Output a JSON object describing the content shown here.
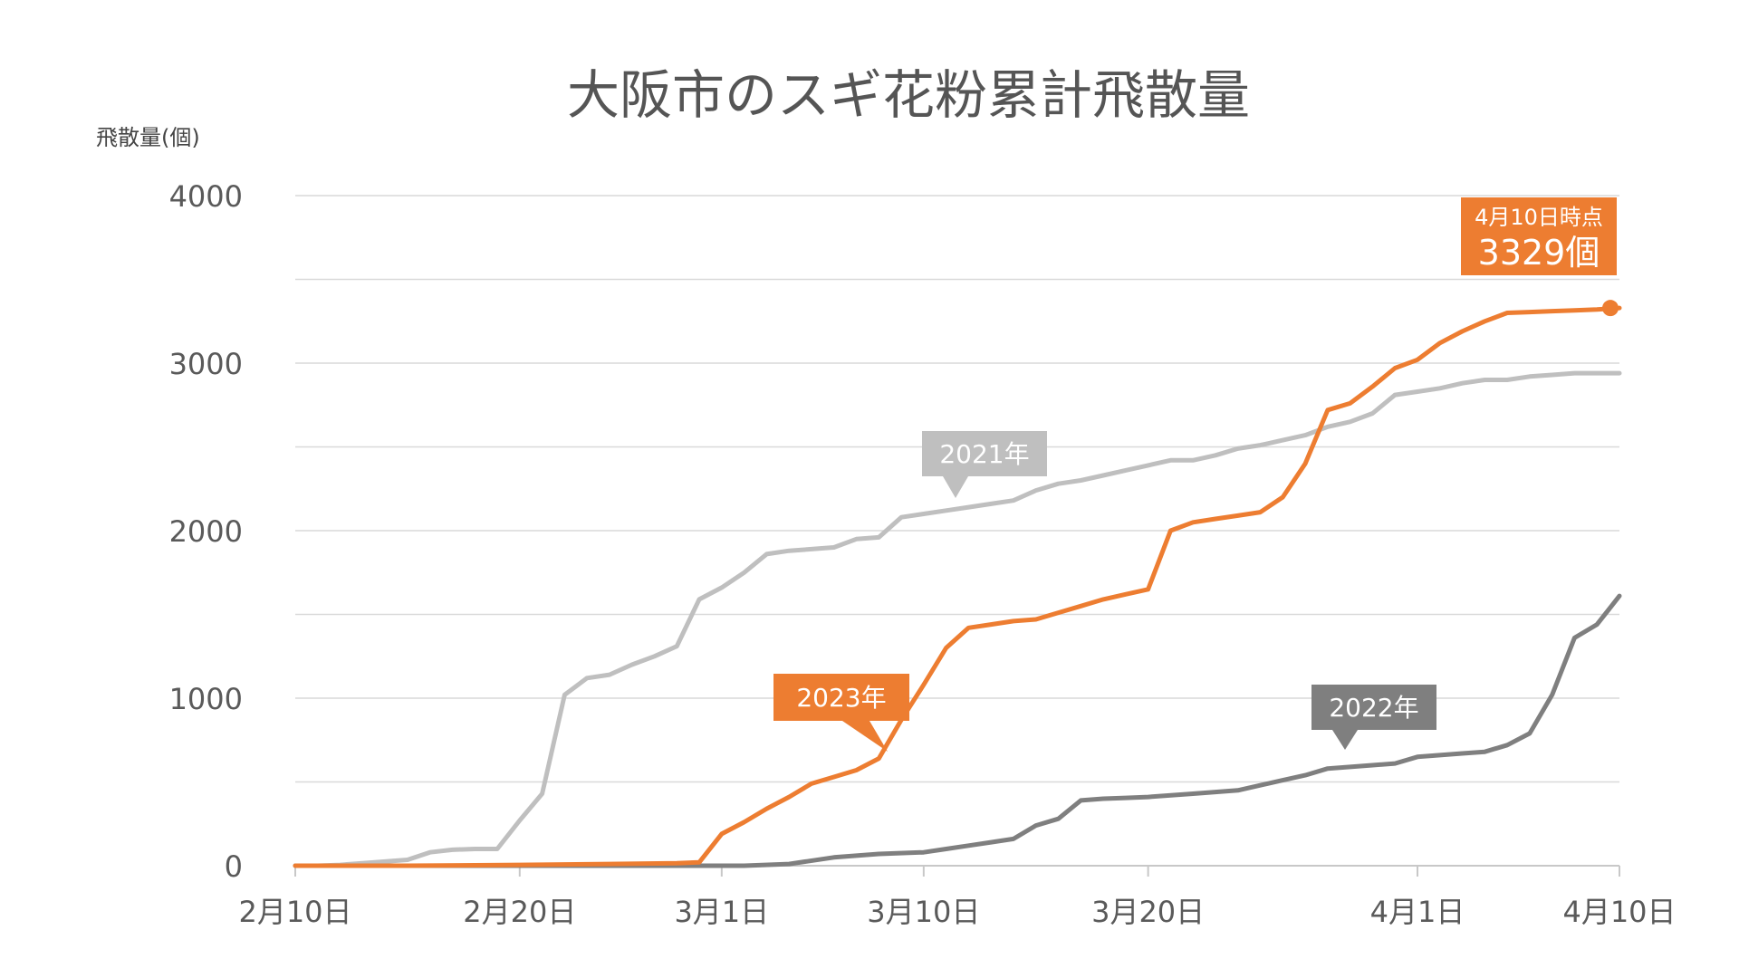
{
  "chart_data": {
    "type": "line",
    "title": "大阪市のスギ花粉累計飛散量",
    "ylabel": "飛散量(個)",
    "xlabel": "",
    "ylim": [
      0,
      4000
    ],
    "yticks": [
      0,
      1000,
      2000,
      3000,
      4000
    ],
    "y_gridlines": [
      0,
      500,
      1000,
      1500,
      2000,
      2500,
      3000,
      3500,
      4000
    ],
    "xlim": [
      "2月10日",
      "4月10日"
    ],
    "x_ticks": [
      {
        "day": 0,
        "label": "2月10日"
      },
      {
        "day": 10,
        "label": "2月20日"
      },
      {
        "day": 19,
        "label": "3月1日"
      },
      {
        "day": 28,
        "label": "3月10日"
      },
      {
        "day": 38,
        "label": "3月20日"
      },
      {
        "day": 50,
        "label": "4月1日"
      },
      {
        "day": 59,
        "label": "4月10日"
      }
    ],
    "grid": true,
    "legend": "none",
    "series": [
      {
        "name": "2021年",
        "color": "#bfbfbf",
        "x": [
          0,
          1,
          2,
          3,
          4,
          5,
          6,
          7,
          8,
          9,
          10,
          11,
          12,
          13,
          14,
          15,
          16,
          17,
          18,
          19,
          20,
          21,
          22,
          23,
          24,
          25,
          26,
          27,
          28,
          29,
          30,
          31,
          32,
          33,
          34,
          35,
          36,
          37,
          38,
          39,
          40,
          41,
          42,
          43,
          44,
          45,
          46,
          47,
          48,
          49,
          50,
          51,
          52,
          53,
          54,
          55,
          56,
          57,
          58,
          59
        ],
        "y": [
          0,
          0,
          5,
          15,
          25,
          35,
          80,
          95,
          100,
          100,
          270,
          430,
          1020,
          1120,
          1140,
          1200,
          1250,
          1310,
          1590,
          1660,
          1750,
          1860,
          1880,
          1890,
          1900,
          1950,
          1960,
          2080,
          2100,
          2120,
          2140,
          2160,
          2180,
          2240,
          2280,
          2300,
          2330,
          2360,
          2390,
          2420,
          2420,
          2450,
          2490,
          2510,
          2540,
          2570,
          2620,
          2650,
          2700,
          2810,
          2830,
          2850,
          2880,
          2900,
          2900,
          2920,
          2930,
          2940,
          2940,
          2940
        ]
      },
      {
        "name": "2022年",
        "color": "#7f7f7f",
        "x": [
          0,
          5,
          10,
          15,
          19,
          20,
          22,
          24,
          26,
          28,
          29,
          30,
          31,
          32,
          33,
          34,
          35,
          36,
          37,
          38,
          40,
          42,
          44,
          45,
          46,
          47,
          48,
          49,
          50,
          51,
          52,
          53,
          54,
          55,
          56,
          57,
          58,
          59
        ],
        "y": [
          0,
          0,
          0,
          0,
          0,
          0,
          10,
          50,
          70,
          80,
          100,
          120,
          140,
          160,
          240,
          280,
          390,
          400,
          405,
          410,
          430,
          450,
          510,
          540,
          580,
          590,
          600,
          610,
          650,
          660,
          670,
          680,
          720,
          790,
          1020,
          1360,
          1440,
          1610
        ]
      },
      {
        "name": "2023年",
        "color": "#ed7d31",
        "x": [
          0,
          5,
          10,
          14,
          17,
          18,
          19,
          20,
          21,
          22,
          23,
          24,
          25,
          26,
          27,
          28,
          29,
          30,
          31,
          32,
          33,
          34,
          35,
          36,
          37,
          38,
          39,
          40,
          41,
          42,
          43,
          44,
          45,
          46,
          47,
          48,
          49,
          50,
          51,
          52,
          53,
          54,
          55,
          56,
          57,
          58,
          59
        ],
        "y": [
          0,
          0,
          5,
          10,
          15,
          20,
          190,
          260,
          340,
          410,
          490,
          530,
          570,
          640,
          870,
          1080,
          1300,
          1420,
          1440,
          1460,
          1470,
          1510,
          1550,
          1590,
          1620,
          1650,
          2000,
          2050,
          2070,
          2090,
          2110,
          2200,
          2400,
          2720,
          2760,
          2860,
          2970,
          3020,
          3120,
          3190,
          3250,
          3300,
          3305,
          3310,
          3315,
          3320,
          3329
        ]
      }
    ],
    "callouts": [
      {
        "series": 0,
        "text": "2021年"
      },
      {
        "series": 1,
        "text": "2022年"
      },
      {
        "series": 2,
        "text": "2023年"
      }
    ],
    "final_point": {
      "series": 2,
      "day": 59,
      "value": 3329,
      "label_line1": "4月10日時点",
      "label_line2": "3329個"
    }
  }
}
